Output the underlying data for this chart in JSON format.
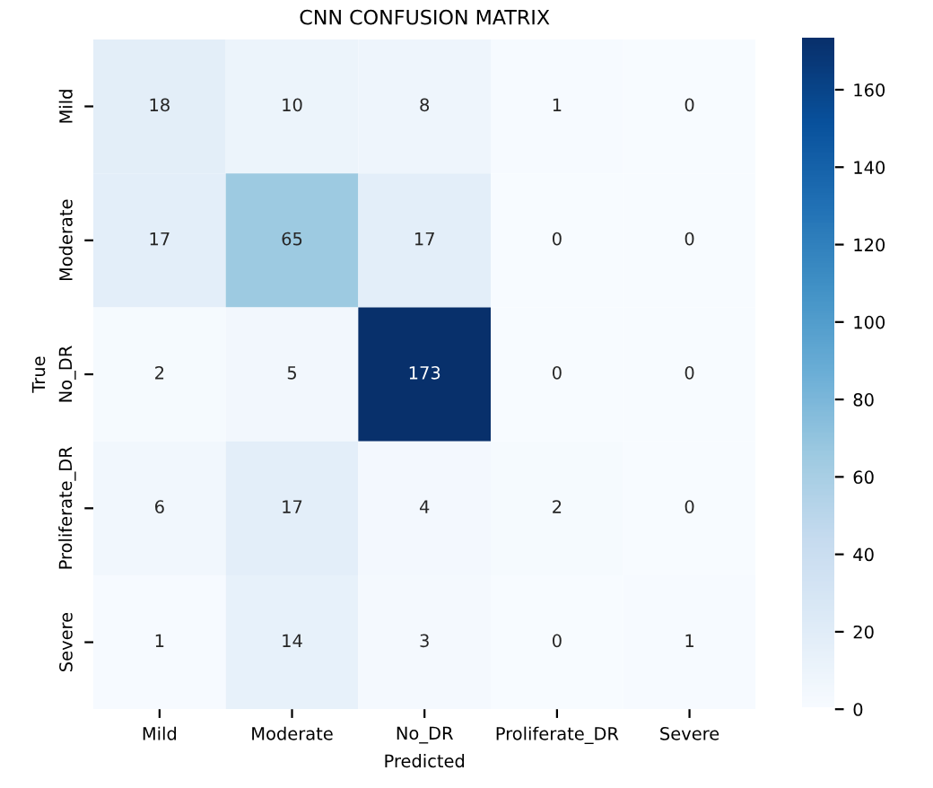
{
  "chart_data": {
    "type": "heatmap",
    "title": "CNN CONFUSION MATRIX",
    "xlabel": "Predicted",
    "ylabel": "True",
    "categories": [
      "Mild",
      "Moderate",
      "No_DR",
      "Proliferate_DR",
      "Severe"
    ],
    "y_categories": [
      "Mild",
      "Moderate",
      "No_DR",
      "Proliferate_DR",
      "Severe"
    ],
    "cells": [
      [
        18,
        10,
        8,
        1,
        0
      ],
      [
        17,
        65,
        17,
        0,
        0
      ],
      [
        2,
        5,
        173,
        0,
        0
      ],
      [
        6,
        17,
        4,
        2,
        0
      ],
      [
        1,
        14,
        3,
        0,
        1
      ]
    ],
    "clim": [
      0,
      173
    ],
    "cticks": [
      0,
      20,
      40,
      60,
      80,
      100,
      120,
      140,
      160
    ],
    "data_labels": true
  }
}
